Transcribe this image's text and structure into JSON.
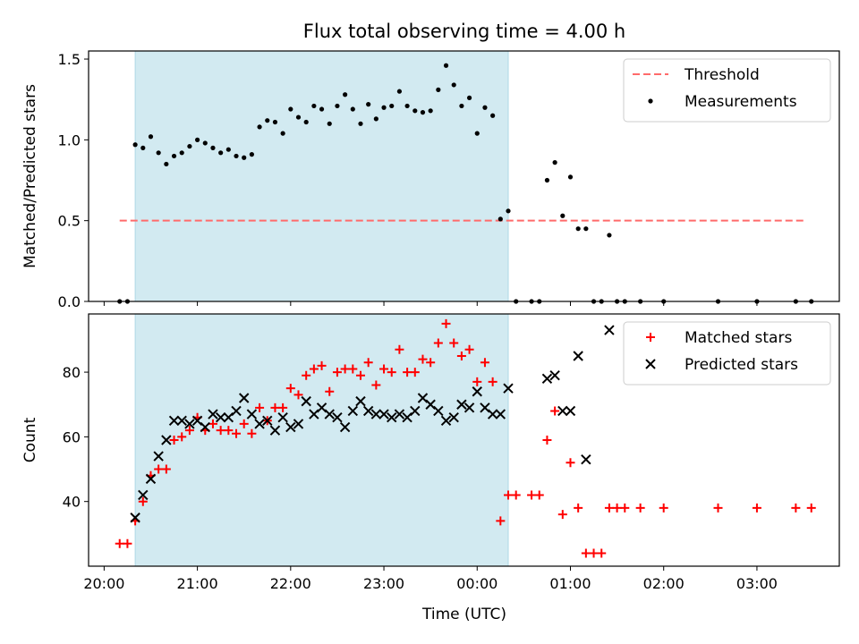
{
  "chart_data": {
    "title": "Flux total observing time = 4.00 h",
    "xlabel": "Time (UTC)",
    "x_ticks": [
      {
        "t": "2024-01-01T20:00",
        "label": "20:00"
      },
      {
        "t": "2024-01-01T21:00",
        "label": "21:00"
      },
      {
        "t": "2024-01-01T22:00",
        "label": "22:00"
      },
      {
        "t": "2024-01-01T23:00",
        "label": "23:00"
      },
      {
        "t": "2024-01-02T00:00",
        "label": "00:00"
      },
      {
        "t": "2024-01-02T01:00",
        "label": "01:00"
      },
      {
        "t": "2024-01-02T02:00",
        "label": "02:00"
      },
      {
        "t": "2024-01-02T03:00",
        "label": "03:00"
      }
    ],
    "xlim": [
      "2024-01-01T19:50",
      "2024-01-02T03:53"
    ],
    "shaded_span": {
      "start": "2024-01-01T20:20",
      "end": "2024-01-02T00:20",
      "color": "#add8e6"
    },
    "panels": [
      {
        "type": "scatter",
        "ylabel": "Matched/Predicted stars",
        "ylim": [
          0,
          1.55
        ],
        "yticks": [
          0,
          0.5,
          1.0,
          1.5
        ],
        "ytick_labels": [
          "0.0",
          "0.5",
          "1.0",
          "1.5"
        ],
        "legend": "top-right",
        "threshold": {
          "name": "Threshold",
          "value": 0.5,
          "start": "2024-01-01T20:10",
          "end": "2024-01-02T03:30",
          "color": "#ff6b6b"
        },
        "series": [
          {
            "name": "Measurements",
            "color": "#000000",
            "marker": "dot",
            "points": [
              [
                "2024-01-01T20:10",
                0.0
              ],
              [
                "2024-01-01T20:15",
                0.0
              ],
              [
                "2024-01-01T20:20",
                0.97
              ],
              [
                "2024-01-01T20:25",
                0.95
              ],
              [
                "2024-01-01T20:30",
                1.02
              ],
              [
                "2024-01-01T20:35",
                0.92
              ],
              [
                "2024-01-01T20:40",
                0.85
              ],
              [
                "2024-01-01T20:45",
                0.9
              ],
              [
                "2024-01-01T20:50",
                0.92
              ],
              [
                "2024-01-01T20:55",
                0.96
              ],
              [
                "2024-01-01T21:00",
                1.0
              ],
              [
                "2024-01-01T21:05",
                0.98
              ],
              [
                "2024-01-01T21:10",
                0.95
              ],
              [
                "2024-01-01T21:15",
                0.92
              ],
              [
                "2024-01-01T21:20",
                0.94
              ],
              [
                "2024-01-01T21:25",
                0.9
              ],
              [
                "2024-01-01T21:30",
                0.89
              ],
              [
                "2024-01-01T21:35",
                0.91
              ],
              [
                "2024-01-01T21:40",
                1.08
              ],
              [
                "2024-01-01T21:45",
                1.12
              ],
              [
                "2024-01-01T21:50",
                1.11
              ],
              [
                "2024-01-01T21:55",
                1.04
              ],
              [
                "2024-01-01T22:00",
                1.19
              ],
              [
                "2024-01-01T22:05",
                1.14
              ],
              [
                "2024-01-01T22:10",
                1.11
              ],
              [
                "2024-01-01T22:15",
                1.21
              ],
              [
                "2024-01-01T22:20",
                1.19
              ],
              [
                "2024-01-01T22:25",
                1.1
              ],
              [
                "2024-01-01T22:30",
                1.21
              ],
              [
                "2024-01-01T22:35",
                1.28
              ],
              [
                "2024-01-01T22:40",
                1.19
              ],
              [
                "2024-01-01T22:45",
                1.1
              ],
              [
                "2024-01-01T22:50",
                1.22
              ],
              [
                "2024-01-01T22:55",
                1.13
              ],
              [
                "2024-01-01T23:00",
                1.2
              ],
              [
                "2024-01-01T23:05",
                1.21
              ],
              [
                "2024-01-01T23:10",
                1.3
              ],
              [
                "2024-01-01T23:15",
                1.21
              ],
              [
                "2024-01-01T23:20",
                1.18
              ],
              [
                "2024-01-01T23:25",
                1.17
              ],
              [
                "2024-01-01T23:30",
                1.18
              ],
              [
                "2024-01-01T23:35",
                1.31
              ],
              [
                "2024-01-01T23:40",
                1.46
              ],
              [
                "2024-01-01T23:45",
                1.34
              ],
              [
                "2024-01-01T23:50",
                1.21
              ],
              [
                "2024-01-01T23:55",
                1.26
              ],
              [
                "2024-01-02T00:00",
                1.04
              ],
              [
                "2024-01-02T00:05",
                1.2
              ],
              [
                "2024-01-02T00:10",
                1.15
              ],
              [
                "2024-01-02T00:15",
                0.51
              ],
              [
                "2024-01-02T00:20",
                0.56
              ],
              [
                "2024-01-02T00:25",
                0.0
              ],
              [
                "2024-01-02T00:35",
                0.0
              ],
              [
                "2024-01-02T00:40",
                0.0
              ],
              [
                "2024-01-02T00:45",
                0.75
              ],
              [
                "2024-01-02T00:50",
                0.86
              ],
              [
                "2024-01-02T00:55",
                0.53
              ],
              [
                "2024-01-02T01:00",
                0.77
              ],
              [
                "2024-01-02T01:05",
                0.45
              ],
              [
                "2024-01-02T01:10",
                0.45
              ],
              [
                "2024-01-02T01:15",
                0.0
              ],
              [
                "2024-01-02T01:20",
                0.0
              ],
              [
                "2024-01-02T01:25",
                0.41
              ],
              [
                "2024-01-02T01:30",
                0.0
              ],
              [
                "2024-01-02T01:35",
                0.0
              ],
              [
                "2024-01-02T01:45",
                0.0
              ],
              [
                "2024-01-02T02:00",
                0.0
              ],
              [
                "2024-01-02T02:35",
                0.0
              ],
              [
                "2024-01-02T03:00",
                0.0
              ],
              [
                "2024-01-02T03:25",
                0.0
              ],
              [
                "2024-01-02T03:35",
                0.0
              ]
            ]
          }
        ]
      },
      {
        "type": "scatter",
        "ylabel": "Count",
        "ylim": [
          20,
          98
        ],
        "yticks": [
          40,
          60,
          80
        ],
        "ytick_labels": [
          "40",
          "60",
          "80"
        ],
        "legend": "top-right",
        "series": [
          {
            "name": "Matched stars",
            "color": "#ff0000",
            "marker": "plus",
            "points": [
              [
                "2024-01-01T20:10",
                27
              ],
              [
                "2024-01-01T20:15",
                27
              ],
              [
                "2024-01-01T20:20",
                34
              ],
              [
                "2024-01-01T20:25",
                40
              ],
              [
                "2024-01-01T20:30",
                48
              ],
              [
                "2024-01-01T20:35",
                50
              ],
              [
                "2024-01-01T20:40",
                50
              ],
              [
                "2024-01-01T20:45",
                59
              ],
              [
                "2024-01-01T20:50",
                60
              ],
              [
                "2024-01-01T20:55",
                62
              ],
              [
                "2024-01-01T21:00",
                66
              ],
              [
                "2024-01-01T21:05",
                62
              ],
              [
                "2024-01-01T21:10",
                64
              ],
              [
                "2024-01-01T21:15",
                62
              ],
              [
                "2024-01-01T21:20",
                62
              ],
              [
                "2024-01-01T21:25",
                61
              ],
              [
                "2024-01-01T21:30",
                64
              ],
              [
                "2024-01-01T21:35",
                61
              ],
              [
                "2024-01-01T21:40",
                69
              ],
              [
                "2024-01-01T21:45",
                65
              ],
              [
                "2024-01-01T21:50",
                69
              ],
              [
                "2024-01-01T21:55",
                69
              ],
              [
                "2024-01-01T22:00",
                75
              ],
              [
                "2024-01-01T22:05",
                73
              ],
              [
                "2024-01-01T22:10",
                79
              ],
              [
                "2024-01-01T22:15",
                81
              ],
              [
                "2024-01-01T22:20",
                82
              ],
              [
                "2024-01-01T22:25",
                74
              ],
              [
                "2024-01-01T22:30",
                80
              ],
              [
                "2024-01-01T22:35",
                81
              ],
              [
                "2024-01-01T22:40",
                81
              ],
              [
                "2024-01-01T22:45",
                79
              ],
              [
                "2024-01-01T22:50",
                83
              ],
              [
                "2024-01-01T22:55",
                76
              ],
              [
                "2024-01-01T23:00",
                81
              ],
              [
                "2024-01-01T23:05",
                80
              ],
              [
                "2024-01-01T23:10",
                87
              ],
              [
                "2024-01-01T23:15",
                80
              ],
              [
                "2024-01-01T23:20",
                80
              ],
              [
                "2024-01-01T23:25",
                84
              ],
              [
                "2024-01-01T23:30",
                83
              ],
              [
                "2024-01-01T23:35",
                89
              ],
              [
                "2024-01-01T23:40",
                95
              ],
              [
                "2024-01-01T23:45",
                89
              ],
              [
                "2024-01-01T23:50",
                85
              ],
              [
                "2024-01-01T23:55",
                87
              ],
              [
                "2024-01-02T00:00",
                77
              ],
              [
                "2024-01-02T00:05",
                83
              ],
              [
                "2024-01-02T00:10",
                77
              ],
              [
                "2024-01-02T00:15",
                34
              ],
              [
                "2024-01-02T00:20",
                42
              ],
              [
                "2024-01-02T00:25",
                42
              ],
              [
                "2024-01-02T00:35",
                42
              ],
              [
                "2024-01-02T00:40",
                42
              ],
              [
                "2024-01-02T00:45",
                59
              ],
              [
                "2024-01-02T00:50",
                68
              ],
              [
                "2024-01-02T00:55",
                36
              ],
              [
                "2024-01-02T01:00",
                52
              ],
              [
                "2024-01-02T01:05",
                38
              ],
              [
                "2024-01-02T01:10",
                24
              ],
              [
                "2024-01-02T01:15",
                24
              ],
              [
                "2024-01-02T01:20",
                24
              ],
              [
                "2024-01-02T01:25",
                38
              ],
              [
                "2024-01-02T01:30",
                38
              ],
              [
                "2024-01-02T01:35",
                38
              ],
              [
                "2024-01-02T01:45",
                38
              ],
              [
                "2024-01-02T02:00",
                38
              ],
              [
                "2024-01-02T02:35",
                38
              ],
              [
                "2024-01-02T03:00",
                38
              ],
              [
                "2024-01-02T03:25",
                38
              ],
              [
                "2024-01-02T03:35",
                38
              ]
            ]
          },
          {
            "name": "Predicted stars",
            "color": "#000000",
            "marker": "x",
            "points": [
              [
                "2024-01-01T20:20",
                35
              ],
              [
                "2024-01-01T20:25",
                42
              ],
              [
                "2024-01-01T20:30",
                47
              ],
              [
                "2024-01-01T20:35",
                54
              ],
              [
                "2024-01-01T20:40",
                59
              ],
              [
                "2024-01-01T20:45",
                65
              ],
              [
                "2024-01-01T20:50",
                65
              ],
              [
                "2024-01-01T20:55",
                64
              ],
              [
                "2024-01-01T21:00",
                65
              ],
              [
                "2024-01-01T21:05",
                63
              ],
              [
                "2024-01-01T21:10",
                67
              ],
              [
                "2024-01-01T21:15",
                66
              ],
              [
                "2024-01-01T21:20",
                66
              ],
              [
                "2024-01-01T21:25",
                68
              ],
              [
                "2024-01-01T21:30",
                72
              ],
              [
                "2024-01-01T21:35",
                67
              ],
              [
                "2024-01-01T21:40",
                64
              ],
              [
                "2024-01-01T21:45",
                65
              ],
              [
                "2024-01-01T21:50",
                62
              ],
              [
                "2024-01-01T21:55",
                66
              ],
              [
                "2024-01-01T22:00",
                63
              ],
              [
                "2024-01-01T22:05",
                64
              ],
              [
                "2024-01-01T22:10",
                71
              ],
              [
                "2024-01-01T22:15",
                67
              ],
              [
                "2024-01-01T22:20",
                69
              ],
              [
                "2024-01-01T22:25",
                67
              ],
              [
                "2024-01-01T22:30",
                66
              ],
              [
                "2024-01-01T22:35",
                63
              ],
              [
                "2024-01-01T22:40",
                68
              ],
              [
                "2024-01-01T22:45",
                71
              ],
              [
                "2024-01-01T22:50",
                68
              ],
              [
                "2024-01-01T22:55",
                67
              ],
              [
                "2024-01-01T23:00",
                67
              ],
              [
                "2024-01-01T23:05",
                66
              ],
              [
                "2024-01-01T23:10",
                67
              ],
              [
                "2024-01-01T23:15",
                66
              ],
              [
                "2024-01-01T23:20",
                68
              ],
              [
                "2024-01-01T23:25",
                72
              ],
              [
                "2024-01-01T23:30",
                70
              ],
              [
                "2024-01-01T23:35",
                68
              ],
              [
                "2024-01-01T23:40",
                65
              ],
              [
                "2024-01-01T23:45",
                66
              ],
              [
                "2024-01-01T23:50",
                70
              ],
              [
                "2024-01-01T23:55",
                69
              ],
              [
                "2024-01-02T00:00",
                74
              ],
              [
                "2024-01-02T00:05",
                69
              ],
              [
                "2024-01-02T00:10",
                67
              ],
              [
                "2024-01-02T00:15",
                67
              ],
              [
                "2024-01-02T00:20",
                75
              ],
              [
                "2024-01-02T00:45",
                78
              ],
              [
                "2024-01-02T00:50",
                79
              ],
              [
                "2024-01-02T00:55",
                68
              ],
              [
                "2024-01-02T01:00",
                68
              ],
              [
                "2024-01-02T01:05",
                85
              ],
              [
                "2024-01-02T01:10",
                53
              ],
              [
                "2024-01-02T01:25",
                93
              ]
            ]
          }
        ]
      }
    ]
  }
}
